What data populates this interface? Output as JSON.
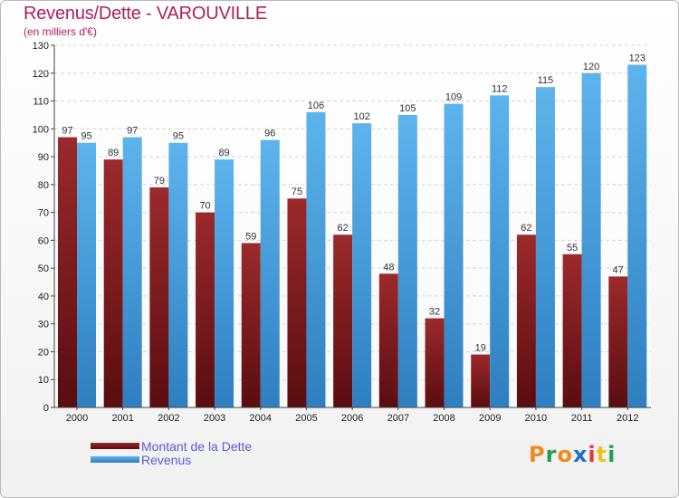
{
  "title": "Revenus/Dette - VAROUVILLE",
  "subtitle": "(en milliers d'€)",
  "colors": {
    "dette": "#7f1c1f",
    "revenus": "#4fa7e4",
    "title": "#b01f5a",
    "legend_text": "#5b5bd6"
  },
  "chart_data": {
    "type": "bar",
    "title": "Revenus/Dette - VAROUVILLE",
    "ylabel": "(en milliers d'€)",
    "xlabel": "",
    "ylim": [
      0,
      130
    ],
    "yticks": [
      0,
      10,
      20,
      30,
      40,
      50,
      60,
      70,
      80,
      90,
      100,
      110,
      120,
      130
    ],
    "categories": [
      "2000",
      "2001",
      "2002",
      "2003",
      "2004",
      "2005",
      "2006",
      "2007",
      "2008",
      "2009",
      "2010",
      "2011",
      "2012"
    ],
    "series": [
      {
        "name": "Montant de la Dette",
        "values": [
          97,
          89,
          79,
          70,
          59,
          75,
          62,
          48,
          32,
          19,
          62,
          55,
          47
        ]
      },
      {
        "name": "Revenus",
        "values": [
          95,
          97,
          95,
          89,
          96,
          106,
          102,
          105,
          109,
          112,
          115,
          120,
          123
        ]
      }
    ],
    "grid": true,
    "legend_position": "bottom-left"
  },
  "legend": {
    "dette_label": "Montant de la Dette",
    "revenus_label": "Revenus"
  },
  "logo": {
    "letters": [
      "P",
      "r",
      "o",
      "x",
      "i",
      "t",
      "i"
    ]
  }
}
